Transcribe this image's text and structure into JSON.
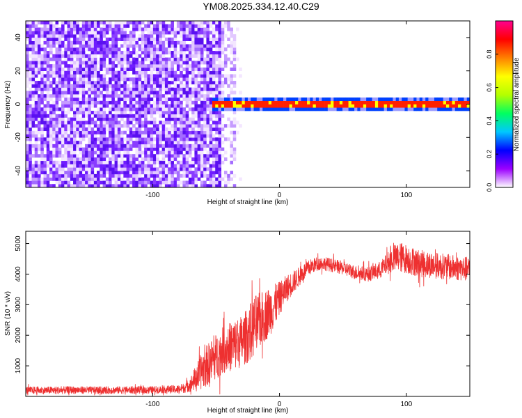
{
  "title": "YM08.2025.334.12.40.C29",
  "chart_data": [
    {
      "type": "heatmap",
      "xlabel": "Height of straight line (km)",
      "ylabel": "Frequency (Hz)",
      "xlim": [
        -200,
        150
      ],
      "ylim": [
        -50,
        50
      ],
      "x_ticks": [
        -100,
        0,
        100
      ],
      "y_ticks": [
        -40,
        -20,
        0,
        20,
        40
      ],
      "noise_region_x": [
        -200,
        -35
      ],
      "signal_band": {
        "x_start": -52,
        "x_end": 150,
        "center_freq": 0,
        "half_width": 3
      },
      "colorbar": {
        "label": "Normalized spectral amplitude",
        "range": [
          0,
          1
        ],
        "ticks": [
          "0.0",
          "0.2",
          "0.4",
          "0.6",
          "0.8"
        ],
        "colors": [
          "#ffffff",
          "#9c00ff",
          "#0000ff",
          "#00c8ff",
          "#00ff60",
          "#b4ff00",
          "#ffff00",
          "#ff8000",
          "#ff0000",
          "#ff0090"
        ]
      }
    },
    {
      "type": "line",
      "xlabel": "Height of straight line (km)",
      "ylabel": "SNR (10 * v/v)",
      "xlim": [
        -200,
        150
      ],
      "ylim": [
        0,
        5400
      ],
      "x_ticks": [
        -100,
        0,
        100
      ],
      "y_ticks": [
        1000,
        2000,
        3000,
        4000,
        5000
      ],
      "color": "#ee3030",
      "series": [
        {
          "name": "SNR",
          "x": [
            -200,
            -180,
            -160,
            -140,
            -120,
            -100,
            -90,
            -80,
            -75,
            -70,
            -65,
            -60,
            -55,
            -50,
            -45,
            -40,
            -35,
            -30,
            -25,
            -20,
            -15,
            -10,
            -5,
            0,
            5,
            10,
            15,
            20,
            25,
            30,
            35,
            40,
            50,
            60,
            70,
            80,
            85,
            90,
            95,
            100,
            110,
            120,
            130,
            140,
            150
          ],
          "y": [
            200,
            200,
            210,
            200,
            210,
            210,
            230,
            230,
            280,
            400,
            650,
            900,
            1100,
            1300,
            1500,
            1600,
            1700,
            1800,
            2000,
            2300,
            2500,
            2700,
            2900,
            3200,
            3500,
            3700,
            3900,
            4100,
            4250,
            4350,
            4350,
            4300,
            4200,
            4050,
            4000,
            4150,
            4350,
            4500,
            4550,
            4500,
            4350,
            4300,
            4250,
            4200,
            4150
          ],
          "noise_amplitude": [
            120,
            120,
            120,
            120,
            120,
            120,
            120,
            140,
            160,
            250,
            450,
            650,
            700,
            750,
            750,
            800,
            850,
            850,
            900,
            1000,
            900,
            850,
            750,
            550,
            450,
            380,
            320,
            280,
            250,
            220,
            220,
            220,
            220,
            230,
            240,
            280,
            350,
            450,
            500,
            480,
            450,
            430,
            420,
            410,
            400
          ]
        }
      ]
    }
  ]
}
